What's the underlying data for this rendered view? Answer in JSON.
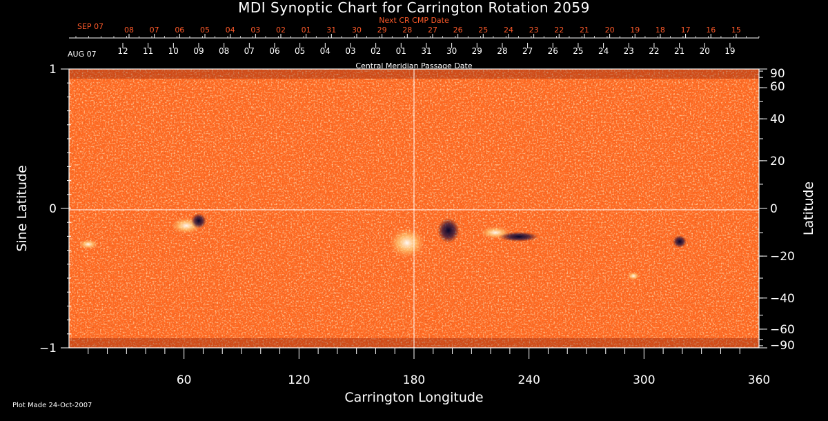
{
  "chart_data": {
    "type": "heatmap",
    "title": "MDI Synoptic Chart for Carrington Rotation 2059",
    "xlabel": "Carrington Longitude",
    "ylabel": "Sine Latitude",
    "y2label": "Latitude",
    "xlim": [
      0,
      360
    ],
    "ylim": [
      -1,
      1
    ],
    "x_ticks": [
      "60",
      "120",
      "180",
      "240",
      "300",
      "360"
    ],
    "y_ticks": [
      "1",
      "0",
      "−1"
    ],
    "y2_ticks": [
      "90",
      "60",
      "40",
      "20",
      "0",
      "−20",
      "−40",
      "−60",
      "−90"
    ],
    "top_axis": {
      "label": "Central Meridian Passage Date",
      "month_label": "AUG 07",
      "dates": [
        "12",
        "11",
        "10",
        "09",
        "08",
        "07",
        "06",
        "05",
        "04",
        "03",
        "02",
        "01",
        "31",
        "30",
        "29",
        "28",
        "27",
        "26",
        "25",
        "24",
        "23",
        "22",
        "21",
        "20",
        "19"
      ]
    },
    "next_cr_axis": {
      "label": "Next CR CMP Date",
      "month_label": "SEP 07",
      "dates": [
        "08",
        "07",
        "06",
        "05",
        "04",
        "03",
        "02",
        "01",
        "31",
        "30",
        "29",
        "28",
        "27",
        "26",
        "25",
        "24",
        "23",
        "22",
        "21",
        "20",
        "19",
        "18",
        "17",
        "16",
        "15"
      ]
    },
    "annotations": {
      "plot_made": "Plot Made 24-Oct-2007"
    },
    "colors": {
      "background": "#000000",
      "map_base": "#ff6a22",
      "positive_polarity": "#ffffff",
      "negative_polarity": "#0a0a40",
      "next_cr_text": "#ff5a2a"
    }
  }
}
